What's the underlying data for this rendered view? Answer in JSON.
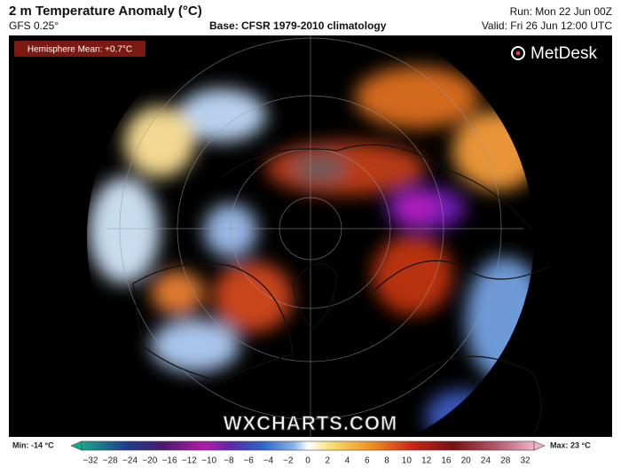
{
  "header": {
    "title": "2 m Temperature Anomaly (°C)",
    "model": "GFS 0.25°",
    "base": "Base: CFSR 1979-2010 climatology",
    "run": "Run: Mon 22 Jun 00Z",
    "valid": "Valid: Fri 26 Jun 12:00 UTC"
  },
  "map": {
    "badge": "Hemisphere Mean: +0.7°C",
    "logo": "MetDesk",
    "watermark": "WXCHARTS.COM"
  },
  "colorbar": {
    "min": "Min: -14 °C",
    "max": "Max: 23 °C",
    "ticks": [
      "−32",
      "−28",
      "−24",
      "−20",
      "−16",
      "−12",
      "−10",
      "−8",
      "−6",
      "−4",
      "−2",
      "0",
      "2",
      "4",
      "6",
      "8",
      "10",
      "12",
      "16",
      "20",
      "24",
      "28",
      "32"
    ]
  }
}
